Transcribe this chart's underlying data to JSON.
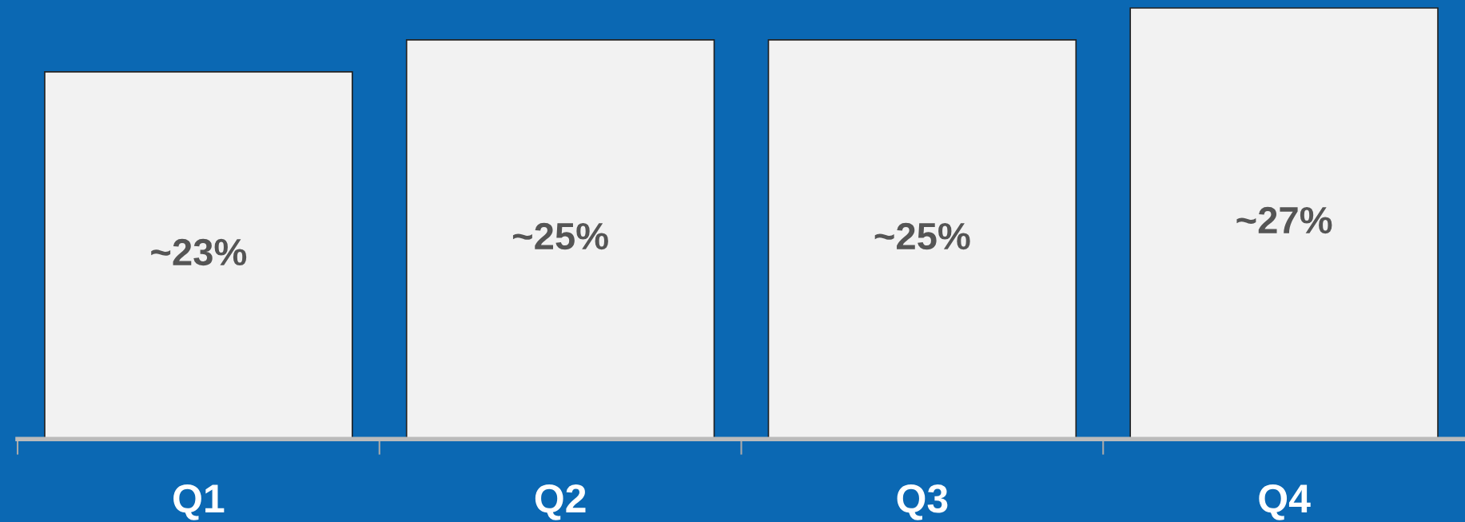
{
  "chart_data": {
    "type": "bar",
    "categories": [
      "Q1",
      "Q2",
      "Q3",
      "Q4"
    ],
    "values": [
      23,
      25,
      25,
      27
    ],
    "value_labels": [
      "~23%",
      "~25%",
      "~25%",
      "~27%"
    ],
    "color": "#f2f2f2",
    "ylim": [
      0,
      27.5
    ]
  }
}
